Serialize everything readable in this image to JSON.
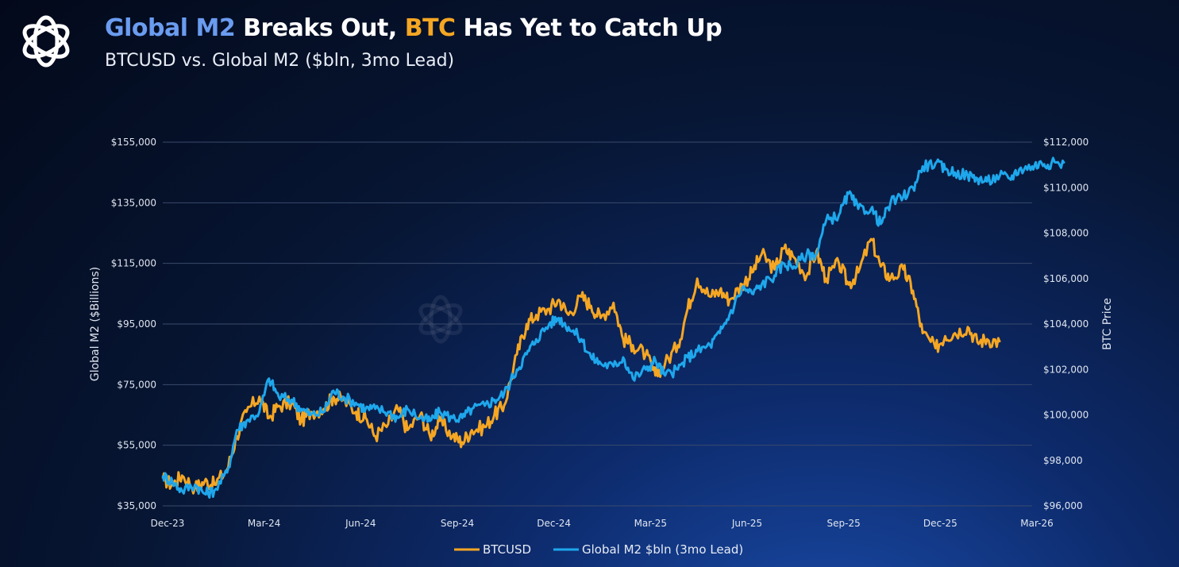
{
  "header": {
    "title_part1": "Global M2",
    "title_part2": " Breaks Out, ",
    "title_part3": "BTC",
    "title_part4": " Has Yet to Catch Up",
    "subtitle": "BTCUSD vs. Global M2 ($bln, 3mo Lead)"
  },
  "colors": {
    "btc": "#f5a623",
    "m2": "#1ea7ec",
    "title_blue": "#6a9cf0",
    "grid": "#3a4a6b"
  },
  "logo": {
    "icon": "flower-logo-icon"
  },
  "chart_data": {
    "type": "line",
    "title": "Global M2 Breaks Out, BTC Has Yet to Catch Up",
    "subtitle": "BTCUSD vs. Global M2 ($bln, 3mo Lead)",
    "ylabel_left": "Global M2 ($Billions)",
    "ylabel_right": "BTC Price",
    "ylim_left": [
      35000,
      155000
    ],
    "ylim_right": [
      96000,
      112000
    ],
    "left_ticks": [
      "$155,000",
      "$135,000",
      "$115,000",
      "$95,000",
      "$75,000",
      "$55,000",
      "$35,000"
    ],
    "right_ticks": [
      "$112,000",
      "$110,000",
      "$108,000",
      "$106,000",
      "$104,000",
      "$102,000",
      "$100,000",
      "$98,000",
      "$96,000"
    ],
    "x_ticks": [
      "Dec-23",
      "Mar-24",
      "Jun-24",
      "Sep-24",
      "Dec-24",
      "Mar-25",
      "Jun-25",
      "Sep-25",
      "Dec-25",
      "Mar-26"
    ],
    "x_start": 0,
    "x_end": 27,
    "legend": [
      "BTCUSD",
      "Global M2 $bln (3mo Lead)"
    ],
    "series": [
      {
        "name": "BTCUSD",
        "axis": "left",
        "x": [
          0,
          0.3,
          0.6,
          1.0,
          1.3,
          1.6,
          2.0,
          2.3,
          2.6,
          3.0,
          3.3,
          3.6,
          4.0,
          4.3,
          4.6,
          5.0,
          5.3,
          5.6,
          6.0,
          6.3,
          6.6,
          7.0,
          7.3,
          7.6,
          8.0,
          8.3,
          8.6,
          9.0,
          9.3,
          9.6,
          10.0,
          10.3,
          10.6,
          11.0,
          11.3,
          11.6,
          12.0,
          12.3,
          12.6,
          13.0,
          13.3,
          13.6,
          14.0,
          14.3,
          14.6,
          15.0,
          15.3,
          15.6,
          16.0,
          16.3,
          16.6,
          17.0,
          17.3,
          17.6,
          18.0,
          18.3,
          18.6,
          19.0,
          19.3,
          19.6,
          20.0,
          20.3,
          20.6,
          21.0,
          21.3,
          21.6,
          22.0,
          22.3,
          22.6,
          23.0,
          23.3,
          23.6,
          24.0,
          24.3,
          24.6,
          25.0,
          25.3,
          25.6,
          26.0
        ],
        "values": [
          44000,
          42000,
          45000,
          41000,
          43000,
          42000,
          47000,
          58000,
          66000,
          71000,
          64000,
          68000,
          69000,
          63000,
          66000,
          67000,
          71000,
          70000,
          66000,
          64000,
          58000,
          62000,
          67000,
          60000,
          65000,
          58000,
          63000,
          58000,
          56000,
          60000,
          61000,
          65000,
          68000,
          85000,
          95000,
          98000,
          100000,
          103000,
          98000,
          104000,
          101000,
          97000,
          102000,
          90000,
          88000,
          85000,
          78000,
          82000,
          88000,
          100000,
          110000,
          104000,
          106000,
          103000,
          108000,
          112000,
          118000,
          113000,
          120000,
          117000,
          111000,
          119000,
          110000,
          115000,
          108000,
          112000,
          123000,
          114000,
          110000,
          113000,
          106000,
          92000,
          87000,
          91000,
          92000,
          94000,
          89000,
          90000,
          89000
        ]
      },
      {
        "name": "Global M2 $bln (3mo Lead)",
        "axis": "left",
        "x": [
          0,
          0.3,
          0.6,
          1.0,
          1.3,
          1.6,
          2.0,
          2.3,
          2.6,
          3.0,
          3.3,
          3.6,
          4.0,
          4.3,
          4.6,
          5.0,
          5.3,
          5.6,
          6.0,
          6.3,
          6.6,
          7.0,
          7.3,
          7.6,
          8.0,
          8.3,
          8.6,
          9.0,
          9.3,
          9.6,
          10.0,
          10.3,
          10.6,
          11.0,
          11.3,
          11.6,
          12.0,
          12.3,
          12.6,
          13.0,
          13.3,
          13.6,
          14.0,
          14.3,
          14.6,
          15.0,
          15.3,
          15.6,
          16.0,
          16.3,
          16.6,
          17.0,
          17.3,
          17.6,
          18.0,
          18.3,
          18.6,
          19.0,
          19.3,
          19.6,
          20.0,
          20.3,
          20.6,
          21.0,
          21.3,
          21.6,
          22.0,
          22.3,
          22.6,
          23.0,
          23.3,
          23.6,
          24.0,
          24.3,
          24.6,
          25.0,
          25.3,
          25.6,
          26.0,
          26.3,
          26.6,
          27.0,
          27.3,
          27.6,
          28.0
        ],
        "values": [
          45000,
          43000,
          40000,
          42000,
          39000,
          40000,
          46000,
          60000,
          63000,
          66000,
          77000,
          71000,
          70000,
          67000,
          65000,
          66000,
          73000,
          71000,
          69000,
          67000,
          67000,
          66000,
          64000,
          67000,
          64000,
          63000,
          66000,
          64000,
          64000,
          67000,
          68000,
          70000,
          72000,
          80000,
          85000,
          90000,
          95000,
          97000,
          94000,
          90000,
          84000,
          82000,
          81000,
          84000,
          77000,
          80000,
          83000,
          78000,
          80000,
          84000,
          86000,
          88000,
          92000,
          98000,
          107000,
          105000,
          108000,
          111000,
          115000,
          114000,
          118000,
          118000,
          129000,
          131000,
          138000,
          133000,
          133000,
          128000,
          135000,
          137000,
          140000,
          147000,
          148000,
          146000,
          145000,
          144000,
          143000,
          142000,
          144000,
          143000,
          146000,
          147000,
          148000,
          148000,
          148000
        ]
      }
    ]
  }
}
